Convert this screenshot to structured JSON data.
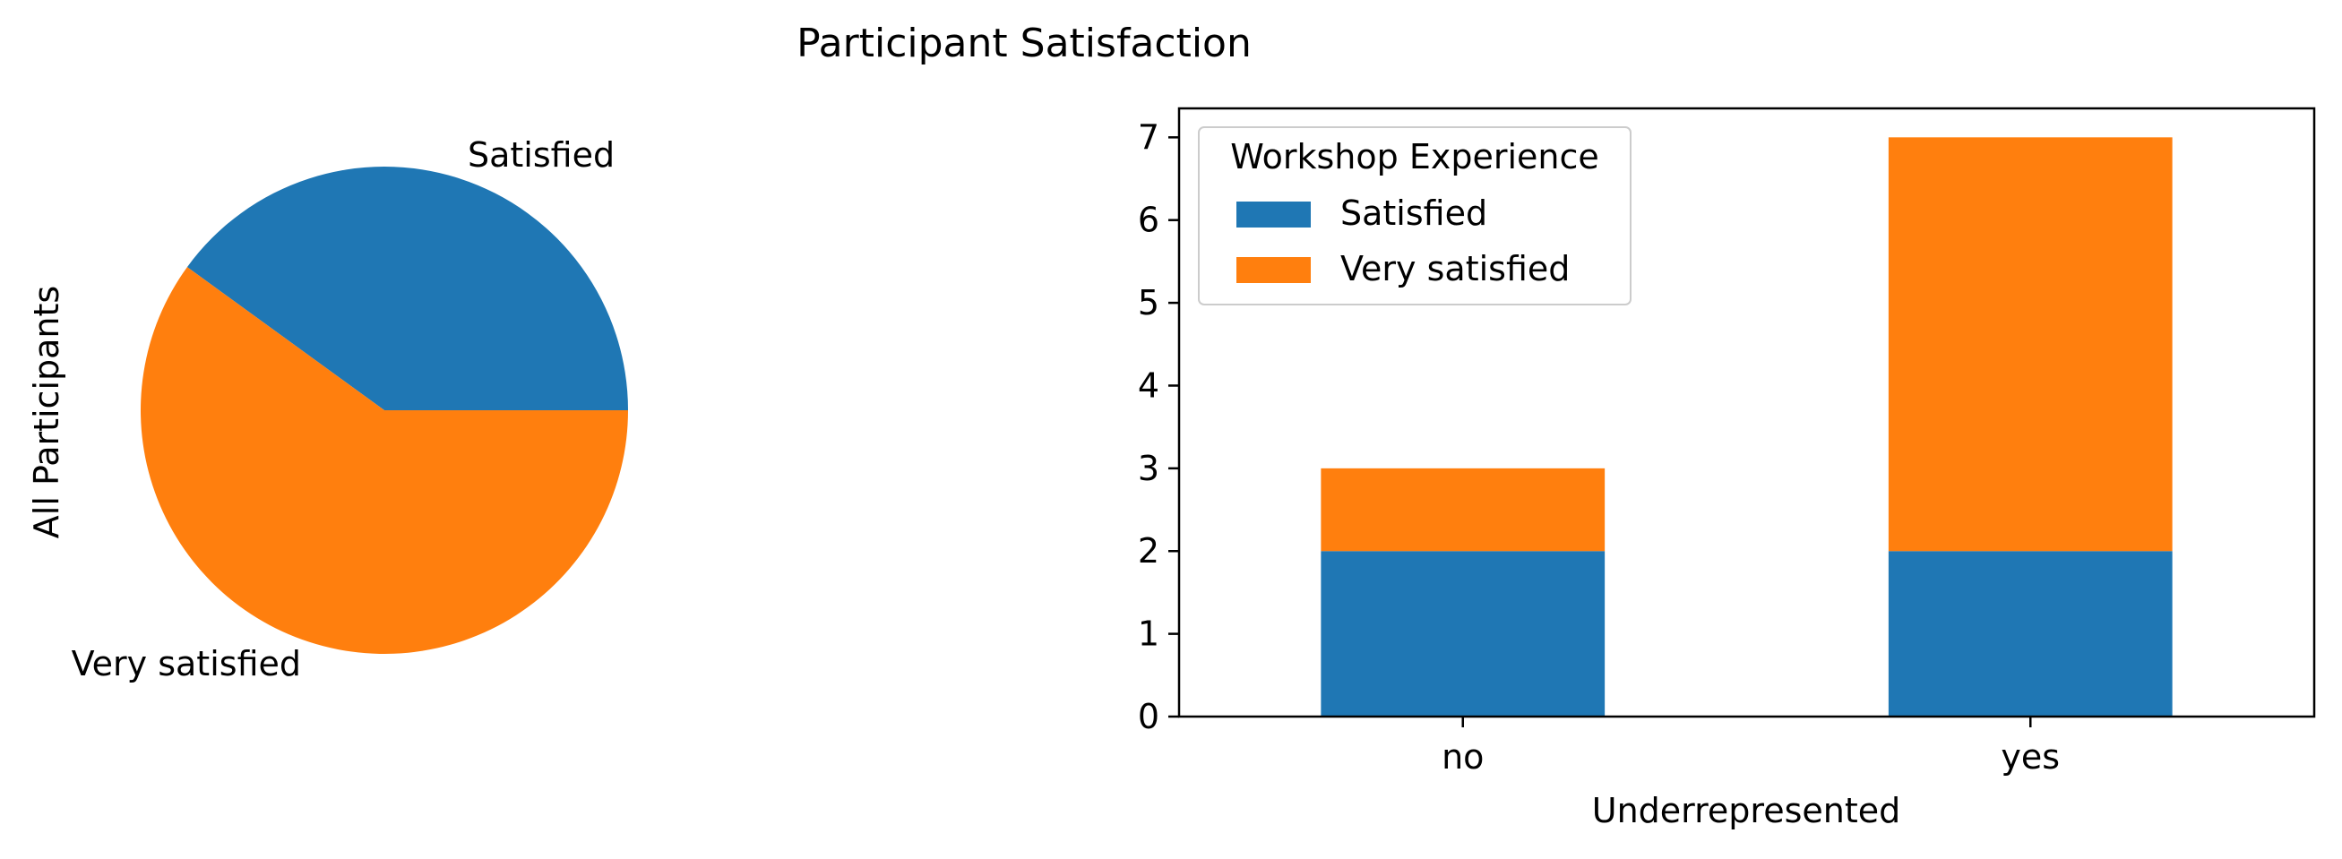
{
  "figure": {
    "title": "Participant Satisfaction"
  },
  "colors": {
    "satisfied": "#1f77b4",
    "very_satisfied": "#ff7f0e"
  },
  "chart_data": [
    {
      "type": "pie",
      "title": "",
      "ylabel": "All Participants",
      "slices": [
        {
          "label": "Satisfied",
          "value": 4
        },
        {
          "label": "Very satisfied",
          "value": 6
        }
      ]
    },
    {
      "type": "bar",
      "stacked": true,
      "title": "",
      "xlabel": "Underrepresented",
      "ylabel": "",
      "categories": [
        "no",
        "yes"
      ],
      "series": [
        {
          "name": "Satisfied",
          "values": [
            2,
            2
          ]
        },
        {
          "name": "Very satisfied",
          "values": [
            1,
            5
          ]
        }
      ],
      "ylim": [
        0,
        7.35
      ],
      "yticks": [
        "0",
        "1",
        "2",
        "3",
        "4",
        "5",
        "6",
        "7"
      ],
      "legend": {
        "title": "Workshop Experience",
        "placement": "top-left"
      },
      "grid": false
    }
  ]
}
